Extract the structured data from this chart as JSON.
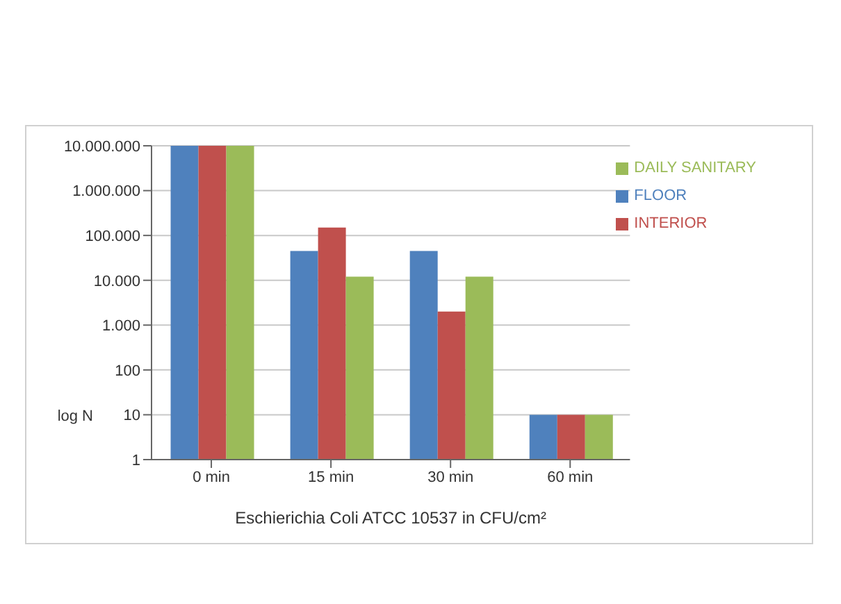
{
  "chart_data": {
    "type": "bar",
    "xlabel": "Eschierichia Coli    ATCC 10537 in CFU/cm²",
    "ylabel": "log N",
    "categories": [
      "0 min",
      "15 min",
      "30 min",
      "60 min"
    ],
    "series": [
      {
        "name": "FLOOR",
        "color": "#4f81bd",
        "values": [
          10000000,
          45000,
          45000,
          10
        ]
      },
      {
        "name": "INTERIOR",
        "color": "#c0504d",
        "values": [
          10000000,
          150000,
          2000,
          10
        ]
      },
      {
        "name": "DAILY SANITARY",
        "color": "#9bbb59",
        "values": [
          10000000,
          12000,
          12000,
          10
        ]
      }
    ],
    "log": "y",
    "ylim": [
      1,
      10000000
    ],
    "yticks": [
      1,
      10,
      100,
      {
        "value": 1000,
        "label": "1.000"
      },
      {
        "value": 10000,
        "label": "10.000"
      },
      {
        "value": 100000,
        "label": "100.000"
      },
      {
        "value": 1000000,
        "label": "1.000.000"
      },
      {
        "value": 10000000,
        "label": "10.000.000"
      }
    ],
    "grid": "y",
    "legend": "top right"
  }
}
